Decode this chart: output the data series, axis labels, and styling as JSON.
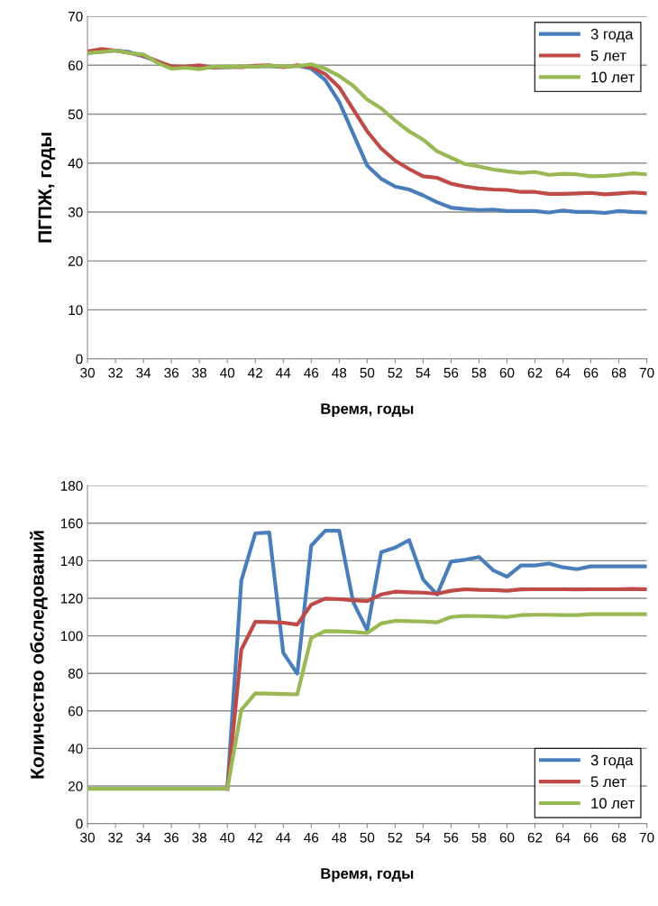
{
  "chart_data": [
    {
      "type": "line",
      "ylabel": "ПГПЖ, годы",
      "xlabel": "Время, годы",
      "x": [
        30,
        31,
        32,
        33,
        34,
        35,
        36,
        37,
        38,
        39,
        40,
        41,
        42,
        43,
        44,
        45,
        46,
        47,
        48,
        49,
        50,
        51,
        52,
        53,
        54,
        55,
        56,
        57,
        58,
        59,
        60,
        61,
        62,
        63,
        64,
        65,
        66,
        67,
        68,
        69,
        70
      ],
      "series": [
        {
          "name": "3 года",
          "color": "#4a7ebb",
          "values": [
            62.5,
            62.8,
            63,
            62.7,
            61.8,
            60.8,
            59.5,
            59.7,
            59.8,
            59.5,
            59.6,
            59.7,
            59.8,
            59.8,
            59.7,
            59.9,
            59.3,
            57,
            52.5,
            46,
            39.5,
            36.8,
            35.2,
            34.6,
            33.4,
            32,
            30.9,
            30.6,
            30.4,
            30.5,
            30.2,
            30.2,
            30.2,
            29.9,
            30.3,
            30,
            30,
            29.8,
            30.2,
            30,
            29.9
          ]
        },
        {
          "name": "5 лет",
          "color": "#be4b48",
          "values": [
            62.8,
            63.3,
            63,
            62.5,
            62,
            60.8,
            59.8,
            59.7,
            60,
            59.5,
            59.7,
            59.6,
            59.9,
            60,
            59.6,
            60,
            59.6,
            58.2,
            55.5,
            51,
            46.5,
            43,
            40.5,
            38.8,
            37.3,
            37,
            35.8,
            35.2,
            34.8,
            34.6,
            34.5,
            34.1,
            34.1,
            33.7,
            33.7,
            33.8,
            33.9,
            33.6,
            33.8,
            34,
            33.8
          ]
        },
        {
          "name": "10 лет",
          "color": "#98b954",
          "values": [
            62.5,
            62.7,
            63,
            62.5,
            62.2,
            60.5,
            59.3,
            59.5,
            59.2,
            59.7,
            59.7,
            59.8,
            59.7,
            59.9,
            59.8,
            59.8,
            60.2,
            59.3,
            57.8,
            55.8,
            53,
            51.2,
            48.7,
            46.5,
            44.8,
            42.4,
            41.1,
            39.8,
            39.3,
            38.7,
            38.3,
            38,
            38.2,
            37.6,
            37.8,
            37.7,
            37.3,
            37.4,
            37.6,
            37.9,
            37.7
          ]
        }
      ],
      "xlim": [
        30,
        70
      ],
      "xticks": [
        30,
        32,
        34,
        36,
        38,
        40,
        42,
        44,
        46,
        48,
        50,
        52,
        54,
        56,
        58,
        60,
        62,
        64,
        66,
        68,
        70
      ],
      "ylim": [
        0,
        70
      ],
      "yticks": [
        0,
        10,
        20,
        30,
        40,
        50,
        60,
        70
      ],
      "grid": "y",
      "legend": "top right",
      "marker": "none",
      "line_style": "solid"
    },
    {
      "type": "line",
      "ylabel": "Количество обследований",
      "xlabel": "Время, годы",
      "x": [
        30,
        31,
        32,
        33,
        34,
        35,
        36,
        37,
        38,
        39,
        40,
        41,
        42,
        43,
        44,
        45,
        46,
        47,
        48,
        49,
        50,
        51,
        52,
        53,
        54,
        55,
        56,
        57,
        58,
        59,
        60,
        61,
        62,
        63,
        64,
        65,
        66,
        67,
        68,
        69,
        70
      ],
      "series": [
        {
          "name": "3 года",
          "color": "#4a7ebb",
          "values": [
            null,
            null,
            null,
            null,
            null,
            null,
            null,
            null,
            null,
            null,
            18.5,
            129.4,
            154.6,
            155,
            91,
            79.8,
            148,
            156,
            156,
            118,
            103,
            144.5,
            147,
            151,
            130,
            122,
            139.5,
            140.5,
            142,
            135,
            131.5,
            137.5,
            137.5,
            138.5,
            136.5,
            135.5,
            137,
            137,
            137,
            137,
            137
          ]
        },
        {
          "name": "5 лет",
          "color": "#be4b48",
          "values": [
            null,
            null,
            null,
            null,
            null,
            null,
            null,
            null,
            null,
            null,
            18.5,
            92.6,
            107.5,
            107.3,
            107,
            106,
            116.6,
            119.8,
            119.5,
            119,
            118.5,
            122,
            123.5,
            123.2,
            123,
            122.4,
            124,
            124.8,
            124.5,
            124.4,
            124,
            124.7,
            124.8,
            124.8,
            124.8,
            124.7,
            124.8,
            124.8,
            124.8,
            125,
            124.8
          ]
        },
        {
          "name": "10 лет",
          "color": "#98b954",
          "values": [
            18.5,
            18.5,
            18.5,
            18.5,
            18.5,
            18.5,
            18.5,
            18.5,
            18.5,
            18.5,
            18.5,
            60.6,
            69.3,
            69.2,
            69,
            68.8,
            98.9,
            102.5,
            102.4,
            102,
            101.5,
            106.6,
            108,
            107.8,
            107.6,
            107.2,
            110,
            110.6,
            110.5,
            110.3,
            110,
            111,
            111.2,
            111.2,
            111,
            111,
            111.5,
            111.5,
            111.5,
            111.5,
            111.5
          ]
        }
      ],
      "xlim": [
        30,
        70
      ],
      "xticks": [
        30,
        32,
        34,
        36,
        38,
        40,
        42,
        44,
        46,
        48,
        50,
        52,
        54,
        56,
        58,
        60,
        62,
        64,
        66,
        68,
        70
      ],
      "ylim": [
        0,
        180
      ],
      "yticks": [
        0,
        20,
        40,
        60,
        80,
        100,
        120,
        140,
        160,
        180
      ],
      "grid": "y",
      "legend": "lower right",
      "marker": "none",
      "line_style": "solid"
    }
  ]
}
